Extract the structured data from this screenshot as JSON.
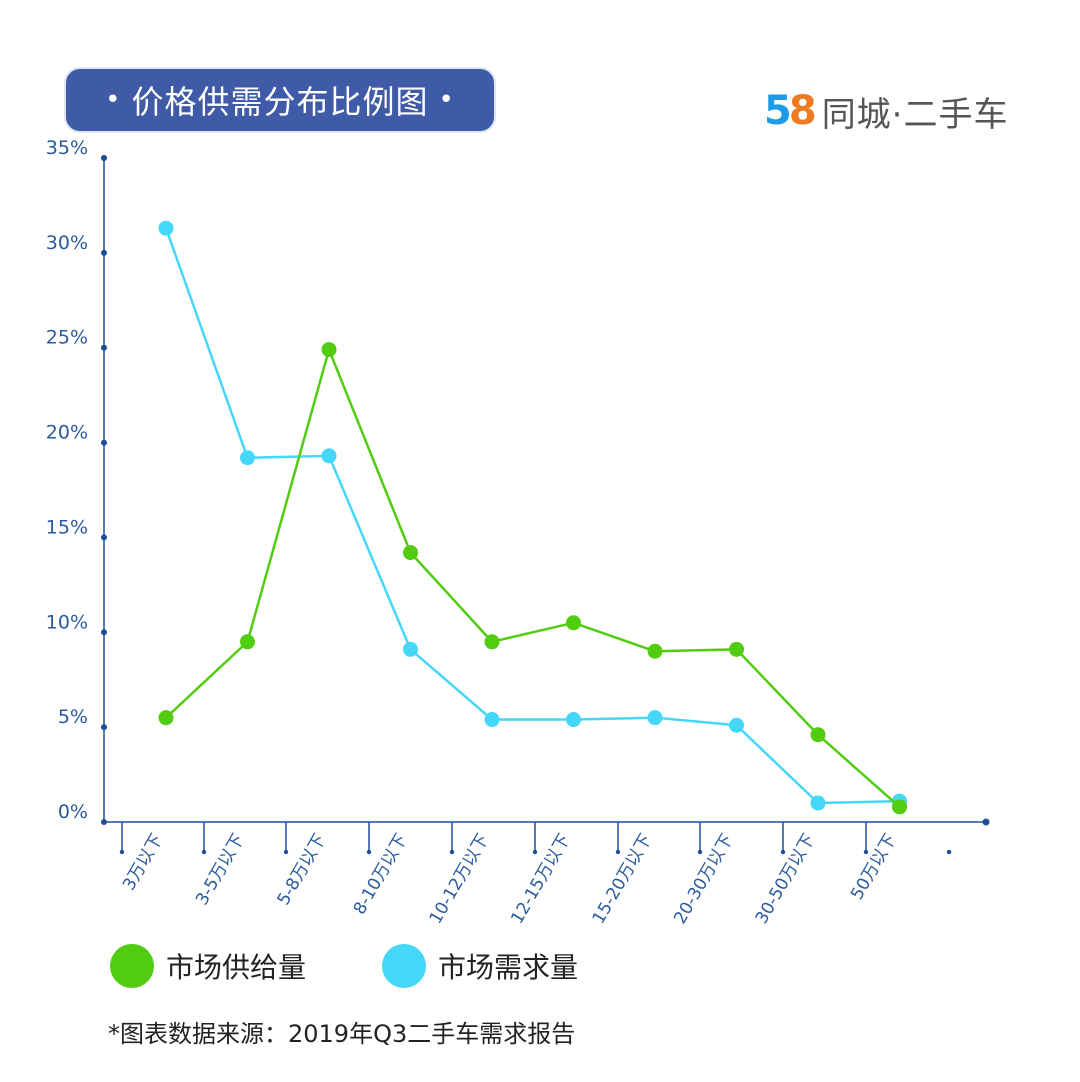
{
  "title": {
    "dot_left": "•",
    "text": "价格供需分布比例图",
    "dot_right": "•"
  },
  "brand": {
    "digit1": "5",
    "digit2": "8",
    "text": "同城·二手车"
  },
  "colors": {
    "title_bg": "#3f5aa6",
    "supply": "#52cc10",
    "demand": "#45d7f7",
    "axis": "#1d4f99",
    "tick_label": "#2a5a9e"
  },
  "chart_data": {
    "type": "line",
    "categories": [
      "3万以下",
      "3-5万以下",
      "5-8万以下",
      "8-10万以下",
      "10-12万以下",
      "12-15万以下",
      "15-20万以下",
      "20-30万以下",
      "30-50万以下",
      "50万以下"
    ],
    "series": [
      {
        "name": "市场供给量",
        "values": [
          5.5,
          9.5,
          24.9,
          14.2,
          9.5,
          10.5,
          9.0,
          9.1,
          4.6,
          0.8
        ]
      },
      {
        "name": "市场需求量",
        "values": [
          31.3,
          19.2,
          19.3,
          9.1,
          5.4,
          5.4,
          5.5,
          5.1,
          1.0,
          1.1
        ]
      }
    ],
    "ylim": [
      0,
      35
    ],
    "yticks": [
      "0%",
      "5%",
      "10%",
      "15%",
      "20%",
      "25%",
      "30%",
      "35%"
    ],
    "grid": false,
    "legend_position": "bottom-left"
  },
  "legend": [
    {
      "label": "市场供给量",
      "color": "#52cc10"
    },
    {
      "label": "市场需求量",
      "color": "#45d7f7"
    }
  ],
  "footnote": "*图表数据来源：2019年Q3二手车需求报告"
}
